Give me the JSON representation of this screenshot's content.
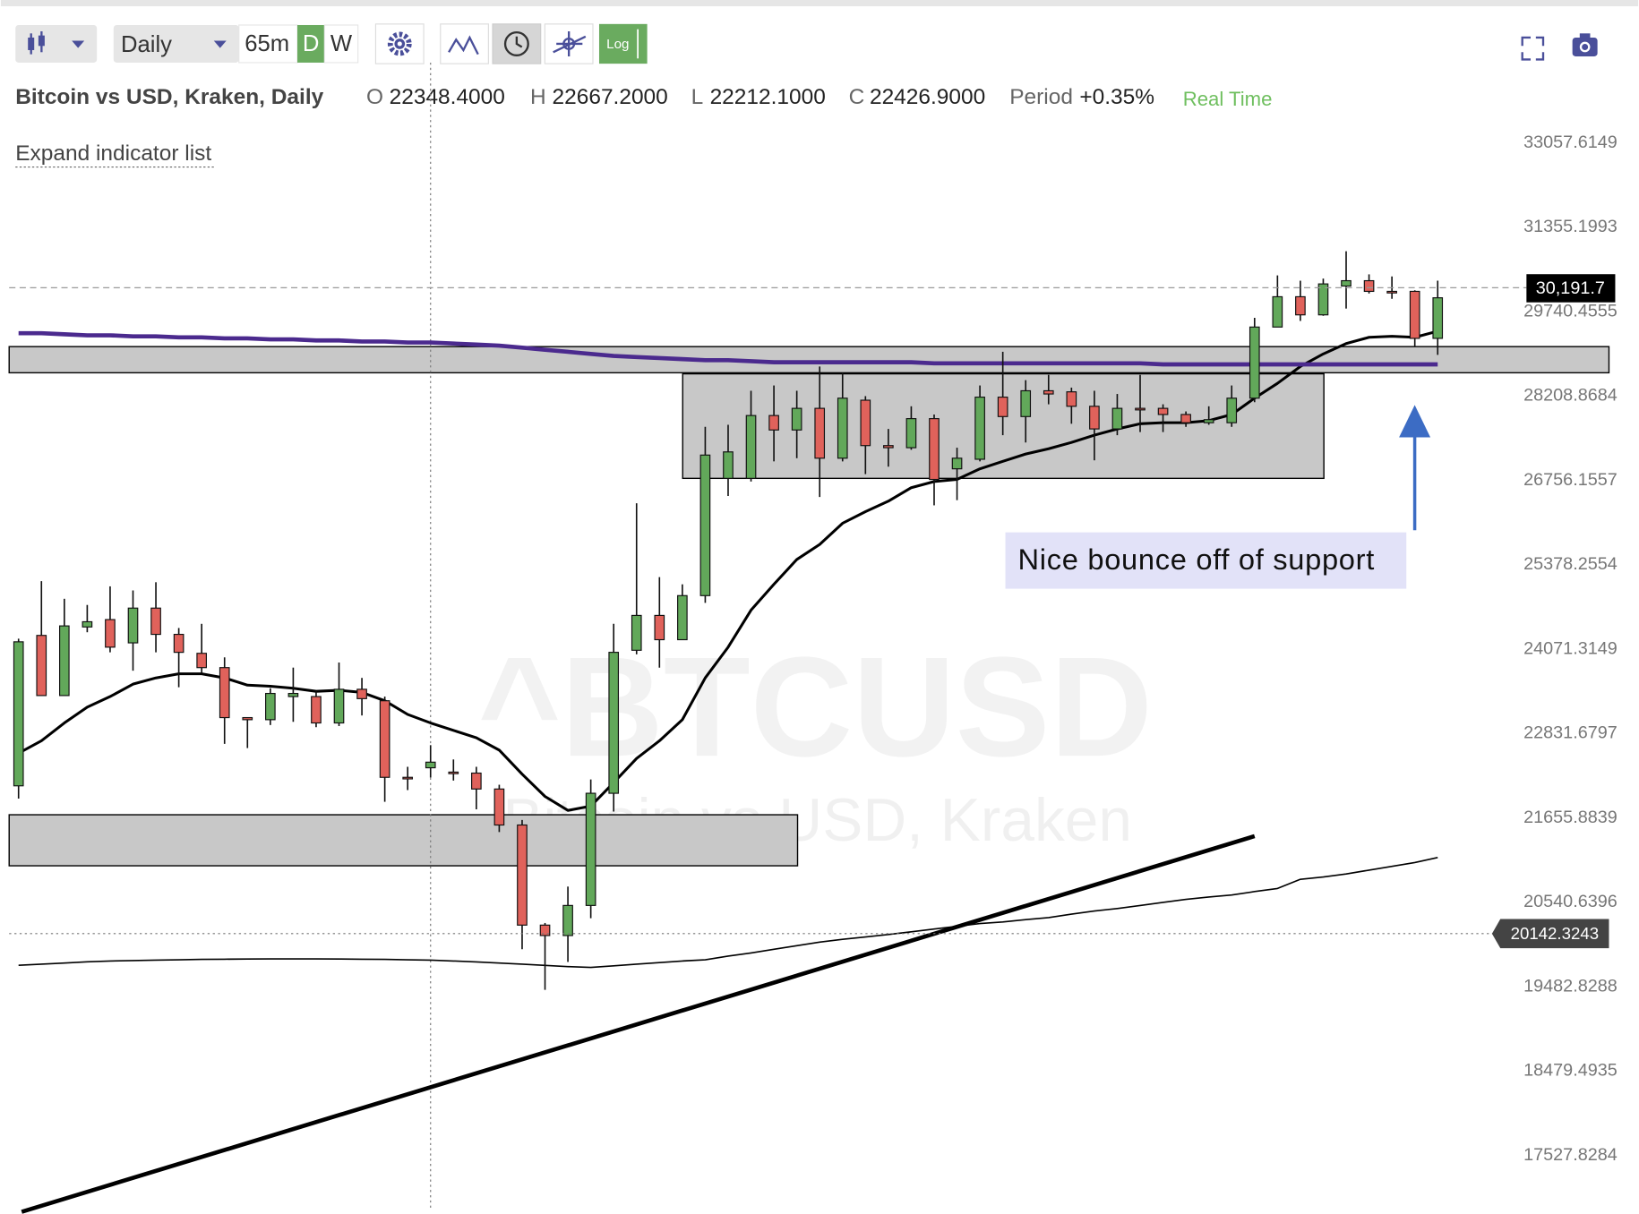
{
  "toolbar": {
    "interval": "Daily",
    "timeframes": [
      "65m",
      "D",
      "W"
    ],
    "log": "Log"
  },
  "header": {
    "ohlc": [
      {
        "key": "O",
        "value": "22348.4000"
      },
      {
        "key": "H",
        "value": "22667.2000"
      },
      {
        "key": "L",
        "value": "22212.1000"
      },
      {
        "key": "C",
        "value": "22426.9000"
      }
    ],
    "period_label": "Period",
    "period": "+0.35%",
    "status": "Real Time"
  },
  "expand_link": "Expand indicator list",
  "chart_data": {
    "type": "candlestick",
    "title": "Bitcoin vs USD, Kraken, Daily",
    "watermark": "^BTCUSD",
    "watermark_subtitle": "Bitcoin vs USD, Kraken",
    "categories": [
      null,
      null,
      null,
      null,
      null,
      null,
      null,
      null,
      null,
      null,
      null,
      null,
      null,
      null,
      null,
      null,
      null,
      null,
      null,
      null,
      null,
      null,
      null,
      null,
      null,
      null,
      null,
      null,
      null,
      null,
      null,
      null,
      null,
      null,
      null,
      null,
      null,
      null,
      null,
      null,
      null,
      null,
      null,
      null,
      null,
      null,
      null,
      null,
      null,
      null,
      null,
      null,
      null,
      null,
      null,
      null,
      null,
      null,
      null,
      null,
      null,
      null,
      null
    ],
    "open": [
      22097,
      24281,
      23383,
      24410,
      24523,
      24168,
      24700,
      24297,
      24010,
      23796,
      23062,
      23032,
      23368,
      23368,
      22985,
      23475,
      23307,
      22215,
      22348.4,
      22288,
      22274,
      22053,
      21561,
      20250,
      20118,
      20501,
      21994,
      24056,
      24587,
      24216,
      24894,
      26792,
      26792,
      27868,
      27617,
      27994,
      27133,
      28137,
      27348,
      27312,
      27814,
      26953,
      27115,
      28191,
      27850,
      28304,
      28285,
      28030,
      27635,
      27994,
      27994,
      27886,
      27743,
      27743,
      28173,
      29457,
      30022,
      29683,
      30224,
      30325,
      30123,
      30123,
      29249
    ],
    "high": [
      24232,
      25120,
      24845,
      24749,
      25039,
      24975,
      25104,
      24394,
      24458,
      23949,
      23062,
      23490,
      23796,
      23445,
      23872,
      23643,
      23368,
      22362,
      22667.2,
      22465,
      22362,
      22112,
      21629,
      20277,
      20745,
      22185,
      24458,
      26377,
      25184,
      25071,
      27671,
      27707,
      28304,
      28398,
      28304,
      28738,
      28625,
      28209,
      27635,
      28030,
      27886,
      27312,
      28398,
      29004,
      28493,
      28587,
      28360,
      28304,
      28247,
      28587,
      28065,
      27940,
      28030,
      28398,
      29627,
      30426,
      30325,
      30365,
      30890,
      30446,
      30406,
      30143,
      30325
    ],
    "low": [
      21921,
      23383,
      23383,
      24329,
      24025,
      23750,
      24025,
      23505,
      23719,
      22685,
      22626,
      22955,
      23001,
      22924,
      22940,
      23093,
      21877,
      22038,
      22212.1,
      22170,
      21774,
      21466,
      19946,
      19445,
      19788,
      20337,
      21744,
      23995,
      23796,
      24216,
      24781,
      26498,
      26739,
      27079,
      27133,
      26481,
      27079,
      26864,
      26989,
      27276,
      26343,
      26429,
      27079,
      27527,
      27402,
      28065,
      27725,
      27097,
      27527,
      27581,
      27581,
      27671,
      27707,
      27671,
      28101,
      29457,
      29570,
      29665,
      29800,
      30083,
      29983,
      29098,
      28947
    ],
    "close": [
      24184,
      23383,
      24426,
      24490,
      24103,
      24700,
      24297,
      24025,
      23796,
      23062,
      23032,
      23414,
      23414,
      22985,
      23475,
      23338,
      22215,
      22200,
      22426.9,
      22274,
      22053,
      21561,
      20250,
      20118,
      20501,
      21994,
      24025,
      24587,
      24216,
      24894,
      27186,
      27240,
      27868,
      27617,
      27994,
      27133,
      28173,
      27348,
      27312,
      27814,
      26774,
      27133,
      28191,
      27850,
      28304,
      28247,
      28030,
      27635,
      27994,
      27976,
      27886,
      27743,
      27796,
      28173,
      29457,
      30022,
      29683,
      30264,
      30325,
      30123,
      30103,
      29249,
      30002
    ],
    "up_color": "#62a85a",
    "down_color": "#e0625b",
    "lines": [
      {
        "color": "#000000",
        "width": 2.6,
        "values": [
          22553,
          22729,
          22985,
          23214,
          23368,
          23551,
          23643,
          23704,
          23704,
          23643,
          23536,
          23520,
          23490,
          23445,
          23460,
          23429,
          23307,
          23108,
          22985,
          22878,
          22773,
          22597,
          22259,
          21950,
          21759,
          21818,
          22141,
          22479,
          22729,
          23032,
          23643,
          24103,
          24668,
          25071,
          25464,
          25705,
          26049,
          26239,
          26412,
          26636,
          26739,
          26774,
          26953,
          27079,
          27204,
          27294,
          27402,
          27527,
          27635,
          27725,
          27743,
          27743,
          27779,
          27886,
          28173,
          28436,
          28738,
          28965,
          29154,
          29268,
          29287,
          29268,
          29381
        ]
      },
      {
        "color": "#4b2a8e",
        "width": 4,
        "values": [
          29343,
          29343,
          29324,
          29305,
          29305,
          29286,
          29286,
          29268,
          29268,
          29249,
          29249,
          29230,
          29230,
          29211,
          29211,
          29192,
          29192,
          29173,
          29173,
          29154,
          29135,
          29116,
          29079,
          29041,
          29003,
          28965,
          28928,
          28909,
          28890,
          28871,
          28852,
          28852,
          28833,
          28814,
          28814,
          28814,
          28814,
          28814,
          28814,
          28814,
          28795,
          28795,
          28795,
          28795,
          28795,
          28795,
          28795,
          28795,
          28795,
          28795,
          28776,
          28776,
          28776,
          28776,
          28776,
          28776,
          28776,
          28776,
          28776,
          28776,
          28776,
          28776,
          28776
        ]
      },
      {
        "color": "#000000",
        "width": 1.4,
        "values": [
          19747,
          19760,
          19775,
          19790,
          19800,
          19805,
          19810,
          19815,
          19820,
          19822,
          19824,
          19826,
          19826,
          19826,
          19825,
          19822,
          19820,
          19815,
          19810,
          19800,
          19788,
          19775,
          19760,
          19745,
          19730,
          19721,
          19740,
          19760,
          19780,
          19800,
          19815,
          19860,
          19900,
          19946,
          19990,
          20035,
          20070,
          20100,
          20131,
          20165,
          20200,
          20235,
          20270,
          20290,
          20320,
          20345,
          20390,
          20430,
          20462,
          20500,
          20540,
          20580,
          20610,
          20636,
          20680,
          20720,
          20840,
          20870,
          20910,
          20960,
          21010,
          21060,
          21126
        ]
      }
    ],
    "zones": [
      {
        "top": 29098,
        "bottom": 28625
      },
      {
        "top": 28606,
        "bottom": 26792
      },
      {
        "top": 21700,
        "bottom": 21017
      }
    ],
    "zone_color": "#c8c8c8",
    "trendline": {
      "start": 16920,
      "end": 21411,
      "color": "#000000"
    },
    "annotation": "Nice bounce off of support",
    "last_price": {
      "value": 30191.7,
      "label": "30,191.7"
    },
    "crosshair_price": 20142.3243,
    "log_scale": true,
    "ylim": [
      16930,
      33537
    ],
    "yticks": [
      17527.8284,
      18479.4935,
      19482.8288,
      20540.6396,
      21655.8839,
      22831.6797,
      24071.3149,
      25378.2554,
      26756.1557,
      28208.8684,
      29740.4555,
      31355.1993,
      33057.6149
    ]
  }
}
